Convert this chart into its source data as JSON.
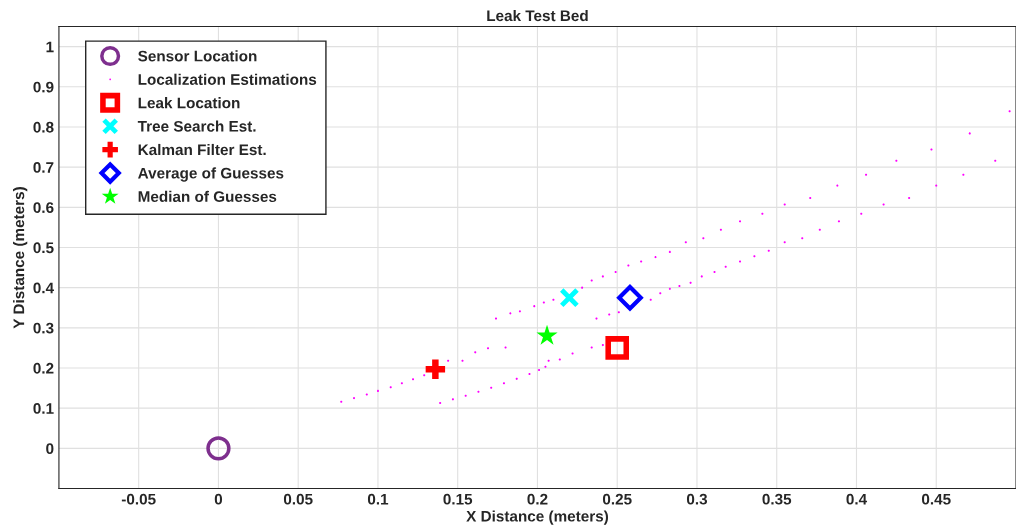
{
  "chart_data": {
    "type": "scatter",
    "title": "Leak Test Bed",
    "xlabel": "X Distance (meters)",
    "ylabel": "Y Distance (meters)",
    "xlim": [
      -0.1,
      0.5
    ],
    "ylim": [
      -0.1,
      1.05
    ],
    "xticks": [
      -0.05,
      0,
      0.05,
      0.1,
      0.15,
      0.2,
      0.25,
      0.3,
      0.35,
      0.4,
      0.45
    ],
    "yticks": [
      0,
      0.1,
      0.2,
      0.3,
      0.4,
      0.5,
      0.6,
      0.7,
      0.8,
      0.9,
      1
    ],
    "grid": true,
    "legend": "top left",
    "series": [
      {
        "name": "Sensor Location",
        "color": "#7e2f8e",
        "marker": "circle",
        "x": [
          0
        ],
        "values": [
          0
        ]
      },
      {
        "name": "Localization Estimations",
        "color": "#ff00ff",
        "marker": "point",
        "x": [
          0.077,
          0.085,
          0.093,
          0.1,
          0.108,
          0.115,
          0.122,
          0.129,
          0.139,
          0.147,
          0.155,
          0.163,
          0.171,
          0.179,
          0.187,
          0.195,
          0.201,
          0.205,
          0.144,
          0.153,
          0.161,
          0.169,
          0.18,
          0.207,
          0.214,
          0.222,
          0.234,
          0.241,
          0.174,
          0.183,
          0.189,
          0.198,
          0.204,
          0.21,
          0.228,
          0.234,
          0.241,
          0.249,
          0.257,
          0.265,
          0.274,
          0.283,
          0.293,
          0.304,
          0.315,
          0.327,
          0.341,
          0.355,
          0.371,
          0.388,
          0.406,
          0.425,
          0.447,
          0.471,
          0.496,
          0.237,
          0.245,
          0.251,
          0.271,
          0.277,
          0.283,
          0.289,
          0.296,
          0.303,
          0.311,
          0.318,
          0.327,
          0.336,
          0.345,
          0.355,
          0.366,
          0.377,
          0.389,
          0.403,
          0.417,
          0.433,
          0.45,
          0.467,
          0.487
        ],
        "values": [
          0.116,
          0.125,
          0.134,
          0.143,
          0.152,
          0.162,
          0.172,
          0.182,
          0.113,
          0.122,
          0.131,
          0.141,
          0.151,
          0.162,
          0.173,
          0.185,
          0.195,
          0.203,
          0.218,
          0.218,
          0.239,
          0.249,
          0.251,
          0.218,
          0.221,
          0.236,
          0.251,
          0.257,
          0.323,
          0.336,
          0.341,
          0.354,
          0.363,
          0.37,
          0.4,
          0.418,
          0.428,
          0.439,
          0.455,
          0.465,
          0.476,
          0.489,
          0.513,
          0.523,
          0.544,
          0.565,
          0.584,
          0.607,
          0.623,
          0.654,
          0.681,
          0.716,
          0.744,
          0.784,
          0.839,
          0.323,
          0.333,
          0.339,
          0.37,
          0.386,
          0.397,
          0.404,
          0.412,
          0.428,
          0.439,
          0.452,
          0.465,
          0.478,
          0.492,
          0.513,
          0.523,
          0.544,
          0.565,
          0.584,
          0.607,
          0.623,
          0.654,
          0.681,
          0.716
        ]
      },
      {
        "name": "Leak Location",
        "color": "#ff0000",
        "marker": "square",
        "x": [
          0.25
        ],
        "values": [
          0.25
        ]
      },
      {
        "name": "Tree Search Est.",
        "color": "#00ffff",
        "marker": "cross",
        "x": [
          0.22
        ],
        "values": [
          0.375
        ]
      },
      {
        "name": "Kalman Filter Est.",
        "color": "#ff0000",
        "marker": "plus",
        "x": [
          0.136
        ],
        "values": [
          0.197
        ]
      },
      {
        "name": "Average of Guesses",
        "color": "#0000ff",
        "marker": "diamond",
        "x": [
          0.258
        ],
        "values": [
          0.375
        ]
      },
      {
        "name": "Median of Guesses",
        "color": "#00ff00",
        "marker": "star",
        "x": [
          0.206
        ],
        "values": [
          0.28
        ]
      }
    ]
  }
}
